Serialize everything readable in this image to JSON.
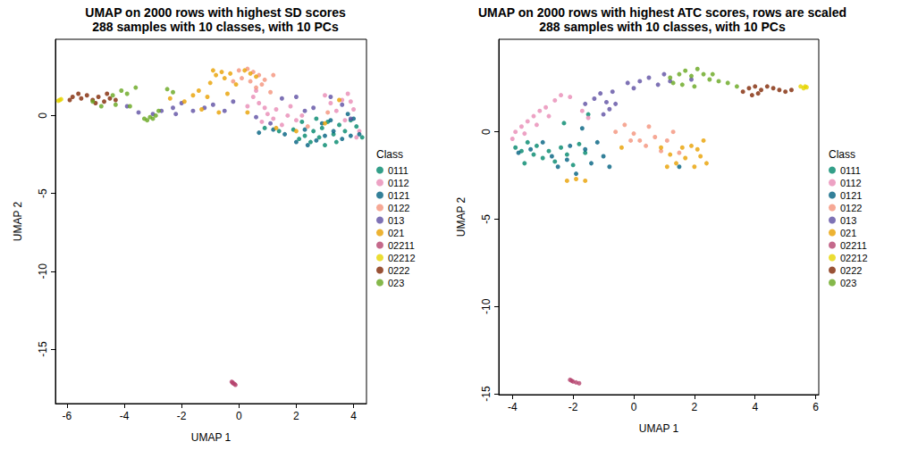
{
  "chart_data": [
    {
      "type": "scatter",
      "title": "UMAP on 2000 rows with highest SD scores",
      "subtitle": "288 samples with 10 classes, with 10 PCs",
      "x_label": "UMAP 1",
      "y_label": "UMAP 2",
      "legend_title": "Class",
      "legend": "right",
      "xlim": [
        -6.4,
        4.45
      ],
      "xticks": [
        -6,
        -4,
        -2,
        0,
        2,
        4
      ],
      "ylim": [
        -18.5,
        4.9
      ],
      "yticks": [
        -15,
        -10,
        -5,
        0
      ],
      "grid": false,
      "series": [
        {
          "name": "0111",
          "color": "#00876C",
          "x": [
            1.9,
            2.1,
            2.3,
            2.5,
            2.6,
            2.8,
            2.9,
            3.0,
            3.1,
            3.3,
            3.5,
            3.7,
            3.9,
            4.1,
            4.3,
            2.2,
            0.9,
            1.4,
            3.4,
            2.7
          ],
          "y": [
            -0.9,
            -1.5,
            -1.3,
            -1.7,
            -1.0,
            -1.4,
            -0.8,
            -1.9,
            -0.4,
            -1.2,
            -0.6,
            -1.0,
            -0.3,
            -0.7,
            -1.4,
            -0.4,
            -0.8,
            -1.0,
            -1.7,
            -0.2
          ]
        },
        {
          "name": "0112",
          "color": "#E88BB5",
          "x": [
            0.5,
            0.7,
            0.9,
            1.0,
            1.2,
            1.3,
            1.5,
            1.7,
            1.8,
            2.0,
            2.2,
            0.3,
            0.8,
            3.0,
            3.2,
            3.4,
            3.6,
            3.7,
            3.8,
            4.0,
            4.2,
            4.1,
            3.9,
            0.6
          ],
          "y": [
            1.2,
            0.8,
            0.5,
            0.1,
            -0.2,
            0.4,
            -0.6,
            0.0,
            0.6,
            -0.3,
            0.0,
            0.6,
            -0.4,
            1.3,
            0.8,
            0.3,
            1.0,
            -0.3,
            1.4,
            0.4,
            -1.0,
            -1.4,
            0.9,
            1.6
          ]
        },
        {
          "name": "0121",
          "color": "#00607F",
          "x": [
            1.6,
            2.0,
            2.4,
            2.7,
            2.9,
            3.2,
            3.3,
            3.6,
            3.8,
            4.0,
            4.2,
            2.3,
            1.2,
            0.7,
            3.0,
            3.9
          ],
          "y": [
            -1.2,
            -1.7,
            -1.9,
            -1.6,
            -0.5,
            -0.3,
            -1.0,
            -1.5,
            0.1,
            -0.2,
            -1.2,
            -0.9,
            -0.9,
            -1.1,
            -1.3,
            -1.3
          ]
        },
        {
          "name": "0122",
          "color": "#F4927A",
          "x": [
            0.0,
            0.3,
            0.5,
            0.7,
            0.9,
            0.1,
            0.8,
            1.1,
            -0.2,
            0.4,
            1.2,
            0.6,
            2.4,
            3.1
          ],
          "y": [
            2.9,
            3.0,
            2.8,
            2.6,
            2.3,
            2.4,
            2.0,
            1.5,
            2.2,
            2.2,
            2.6,
            1.8,
            -0.7,
            0.2
          ]
        },
        {
          "name": "013",
          "color": "#5E4FA2",
          "x": [
            -3.5,
            -3.9,
            -2.7,
            -2.3,
            -2.0,
            -1.6,
            -1.2,
            -0.9,
            -0.5,
            -0.2,
            0.6,
            1.1,
            1.5,
            2.0,
            2.3,
            2.6,
            3.2,
            3.6,
            3.9,
            -3.0,
            -2.2
          ],
          "y": [
            0.2,
            0.6,
            0.3,
            0.5,
            0.8,
            0.3,
            0.5,
            0.7,
            0.3,
            0.9,
            -0.1,
            -0.5,
            1.1,
            1.2,
            0.3,
            0.5,
            1.2,
            0.7,
            -0.2,
            0.1,
            0.1
          ]
        },
        {
          "name": "021",
          "color": "#E8A000",
          "x": [
            -1.9,
            -1.6,
            -1.4,
            -1.1,
            -1.0,
            -0.8,
            -0.6,
            -0.9,
            -0.5,
            -0.3,
            -0.1,
            0.2,
            0.4,
            0.6,
            -1.3,
            -0.7,
            0.3,
            1.3,
            2.0,
            3.0,
            3.5,
            -2.4,
            -0.4
          ],
          "y": [
            0.9,
            1.3,
            1.6,
            1.2,
            2.1,
            2.6,
            2.8,
            2.9,
            2.4,
            2.7,
            2.0,
            2.9,
            2.7,
            2.5,
            0.4,
            0.2,
            0.2,
            -0.8,
            -1.0,
            -0.5,
            1.0,
            1.1,
            1.4
          ]
        },
        {
          "name": "02211",
          "color": "#B5446E",
          "x": [
            -0.25,
            -0.2,
            -0.15,
            -0.12,
            -0.22
          ],
          "y": [
            -17.1,
            -17.2,
            -17.25,
            -17.3,
            -17.15
          ]
        },
        {
          "name": "02212",
          "color": "#E6D400",
          "x": [
            -6.3,
            -6.2,
            -6.25
          ],
          "y": [
            0.95,
            1.05,
            1.0
          ]
        },
        {
          "name": "0222",
          "color": "#7F2704",
          "x": [
            -5.8,
            -5.6,
            -5.5,
            -5.3,
            -5.1,
            -4.9,
            -4.7,
            -4.5,
            -4.3,
            -4.6,
            -5.0,
            -5.9
          ],
          "y": [
            1.2,
            1.4,
            1.1,
            1.3,
            1.0,
            1.2,
            0.9,
            1.1,
            1.0,
            1.4,
            0.8,
            1.0
          ]
        },
        {
          "name": "023",
          "color": "#66A61E",
          "x": [
            -5.1,
            -4.8,
            -4.4,
            -4.1,
            -3.9,
            -3.6,
            -3.8,
            -4.3,
            -3.3,
            -3.2,
            -3.1,
            -3.0,
            -2.9,
            -2.5,
            -2.3,
            -2.8
          ],
          "y": [
            0.9,
            0.6,
            1.3,
            1.6,
            1.4,
            1.8,
            0.6,
            0.7,
            -0.2,
            -0.3,
            -0.1,
            -0.2,
            0.0,
            1.7,
            1.5,
            0.3
          ]
        }
      ]
    },
    {
      "type": "scatter",
      "title": "UMAP on 2000 rows with highest ATC scores, rows are scaled",
      "subtitle": "288 samples with 10 classes, with 10 PCs",
      "x_label": "UMAP 1",
      "y_label": "UMAP 2",
      "legend_title": "Class",
      "legend": "right",
      "xlim": [
        -4.45,
        6.1
      ],
      "xticks": [
        -4,
        -2,
        0,
        2,
        4,
        6
      ],
      "ylim": [
        -15.05,
        5.3
      ],
      "yticks": [
        -15,
        -10,
        -5,
        0
      ],
      "grid": false,
      "series": [
        {
          "name": "0111",
          "color": "#00876C",
          "x": [
            -3.9,
            -3.7,
            -3.5,
            -3.3,
            -3.2,
            -3.0,
            -2.8,
            -2.6,
            -2.4,
            -2.2,
            -2.0,
            -1.8,
            -3.6,
            -2.3,
            -1.6,
            -1.5
          ],
          "y": [
            -0.9,
            -1.1,
            -0.6,
            -1.3,
            -0.8,
            -1.5,
            -1.1,
            -1.7,
            -0.9,
            -1.3,
            -1.9,
            -0.7,
            -1.8,
            0.5,
            -1.2,
            1.0
          ]
        },
        {
          "name": "0112",
          "color": "#E88BB5",
          "x": [
            -4.0,
            -3.9,
            -3.7,
            -3.5,
            -3.3,
            -3.1,
            -2.9,
            -3.2,
            -2.6,
            -2.4,
            -2.1,
            -1.7,
            -1.5,
            -3.6,
            -2.8
          ],
          "y": [
            -0.4,
            0.0,
            0.3,
            0.6,
            0.9,
            1.2,
            1.4,
            0.4,
            1.8,
            2.1,
            2.0,
            1.2,
            0.8,
            -0.1,
            0.9
          ]
        },
        {
          "name": "0121",
          "color": "#00607F",
          "x": [
            -3.8,
            -3.4,
            -3.0,
            -2.7,
            -2.5,
            -2.2,
            -1.9,
            -1.6,
            -1.4,
            -1.2,
            -1.0,
            -0.8,
            -2.1,
            1.5,
            -1.7
          ],
          "y": [
            -1.2,
            -1.0,
            -0.6,
            -1.4,
            -2.0,
            -1.6,
            -2.4,
            -1.0,
            -1.8,
            -0.6,
            -1.4,
            -2.0,
            -0.8,
            -2.0,
            0.2
          ]
        },
        {
          "name": "0122",
          "color": "#F4927A",
          "x": [
            -0.6,
            -0.3,
            0.0,
            0.2,
            0.4,
            0.7,
            0.9,
            1.1,
            1.3,
            1.5,
            0.5,
            -0.1
          ],
          "y": [
            0.0,
            0.4,
            -0.1,
            -0.5,
            -0.8,
            -0.3,
            -1.1,
            -0.5,
            0.0,
            -1.2,
            0.3,
            -0.5
          ]
        },
        {
          "name": "013",
          "color": "#5E4FA2",
          "x": [
            -1.6,
            -1.3,
            -1.1,
            -0.9,
            -0.8,
            -0.7,
            -0.2,
            0.2,
            0.5,
            0.8,
            1.0,
            1.2,
            -1.0,
            -0.6,
            0.0,
            1.9
          ],
          "y": [
            1.6,
            1.9,
            2.2,
            1.7,
            1.3,
            2.3,
            2.8,
            2.9,
            3.1,
            2.7,
            3.3,
            2.9,
            1.0,
            1.6,
            2.5,
            3.0
          ]
        },
        {
          "name": "021",
          "color": "#E8A000",
          "x": [
            0.9,
            1.2,
            1.4,
            1.7,
            1.9,
            2.0,
            2.2,
            2.3,
            2.4,
            2.1,
            1.1,
            1.6,
            -2.2,
            -1.9,
            -1.6,
            -0.4
          ],
          "y": [
            -0.9,
            -1.3,
            -1.8,
            -1.5,
            -0.8,
            -2.0,
            -1.4,
            -0.5,
            -1.8,
            -1.0,
            -2.0,
            -0.9,
            -2.8,
            -2.7,
            -2.8,
            -0.9
          ]
        },
        {
          "name": "02211",
          "color": "#B5446E",
          "x": [
            -2.1,
            -2.0,
            -1.9,
            -1.8,
            -2.05
          ],
          "y": [
            -14.2,
            -14.3,
            -14.35,
            -14.4,
            -14.25
          ]
        },
        {
          "name": "02212",
          "color": "#E6D400",
          "x": [
            5.5,
            5.6,
            5.7,
            5.65
          ],
          "y": [
            2.6,
            2.5,
            2.55,
            2.6
          ]
        },
        {
          "name": "0222",
          "color": "#7F2704",
          "x": [
            3.6,
            3.8,
            4.0,
            4.2,
            4.4,
            4.6,
            4.8,
            5.0,
            5.2,
            4.1,
            3.9
          ],
          "y": [
            2.3,
            2.5,
            2.6,
            2.4,
            2.6,
            2.5,
            2.4,
            2.3,
            2.4,
            2.2,
            2.1
          ]
        },
        {
          "name": "023",
          "color": "#66A61E",
          "x": [
            1.3,
            1.5,
            1.7,
            1.9,
            2.1,
            2.3,
            2.5,
            2.8,
            3.1,
            3.4,
            1.2,
            2.0,
            1.6,
            2.6
          ],
          "y": [
            2.8,
            3.3,
            3.5,
            3.2,
            3.6,
            3.3,
            3.0,
            2.9,
            2.8,
            2.6,
            3.1,
            2.6,
            2.7,
            3.3
          ]
        }
      ]
    }
  ]
}
